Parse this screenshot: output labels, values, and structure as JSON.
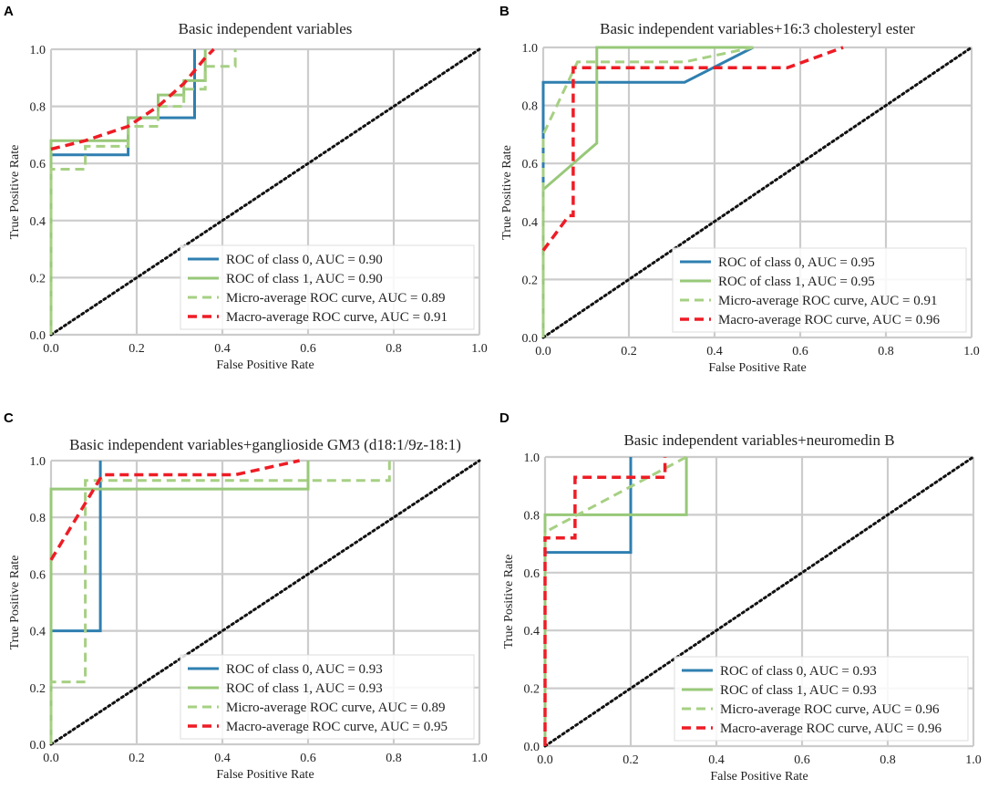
{
  "figure": {
    "xlabel": "False Positive Rate",
    "ylabel": "True Positive Rate",
    "ticks": [
      "0.0",
      "0.2",
      "0.4",
      "0.6",
      "0.8",
      "1.0"
    ],
    "colors": {
      "class0": "#2f7fb0",
      "class1": "#98c879",
      "micro": "#a6d083",
      "macro": "#ee1c25",
      "diagonal": "#111111",
      "grid": "#cccccc"
    }
  },
  "chart_data": [
    {
      "panel": "A",
      "type": "line",
      "title": "Basic independent variables",
      "xlabel": "False Positive Rate",
      "ylabel": "True Positive Rate",
      "xlim": [
        0,
        1
      ],
      "ylim": [
        0,
        1
      ],
      "grid": true,
      "legend_position": "lower-right",
      "series": [
        {
          "key": "class0",
          "name": "ROC of class 0, AUC = 0.90",
          "dash": "solid",
          "x": [
            0,
            0,
            0.18,
            0.18,
            0.27,
            0.27,
            0.335,
            0.335
          ],
          "y": [
            0,
            0.63,
            0.63,
            0.76,
            0.76,
            0.76,
            0.76,
            1.0
          ]
        },
        {
          "key": "class1",
          "name": "ROC of class 1, AUC = 0.90",
          "dash": "solid",
          "x": [
            0,
            0,
            0.18,
            0.18,
            0.25,
            0.25,
            0.31,
            0.31,
            0.36,
            0.36
          ],
          "y": [
            0,
            0.68,
            0.68,
            0.76,
            0.76,
            0.84,
            0.84,
            0.89,
            0.89,
            1.0
          ]
        },
        {
          "key": "micro",
          "name": "Micro-average ROC curve, AUC = 0.89",
          "dash": "dash",
          "x": [
            0,
            0,
            0.08,
            0.08,
            0.18,
            0.18,
            0.25,
            0.25,
            0.31,
            0.31,
            0.36,
            0.36,
            0.43,
            0.43
          ],
          "y": [
            0,
            0.58,
            0.58,
            0.66,
            0.66,
            0.73,
            0.73,
            0.8,
            0.8,
            0.86,
            0.86,
            0.94,
            0.94,
            1.0
          ]
        },
        {
          "key": "macro",
          "name": "Macro-average ROC curve, AUC = 0.91",
          "dash": "dash",
          "x": [
            0,
            0.08,
            0.18,
            0.25,
            0.31,
            0.36,
            0.38
          ],
          "y": [
            0.65,
            0.68,
            0.73,
            0.8,
            0.88,
            0.97,
            1.0
          ]
        },
        {
          "key": "diagonal",
          "name": "",
          "dash": "dot",
          "x": [
            0,
            1
          ],
          "y": [
            0,
            1
          ]
        }
      ]
    },
    {
      "panel": "B",
      "type": "line",
      "title": "Basic independent variables+16:3 cholesteryl ester",
      "xlabel": "False Positive Rate",
      "ylabel": "True Positive Rate",
      "xlim": [
        0,
        1
      ],
      "ylim": [
        0,
        1
      ],
      "grid": true,
      "legend_position": "lower-right",
      "series": [
        {
          "key": "class0",
          "name": "ROC of class 0, AUC = 0.95",
          "dash": "solid",
          "x": [
            0,
            0,
            0.33,
            0.49
          ],
          "y": [
            0,
            0.88,
            0.88,
            1.0
          ]
        },
        {
          "key": "class1",
          "name": "ROC of class 1, AUC = 0.95",
          "dash": "solid",
          "x": [
            0,
            0,
            0.125,
            0.125,
            0.49
          ],
          "y": [
            0,
            0.51,
            0.67,
            1.0,
            1.0
          ]
        },
        {
          "key": "micro",
          "name": "Micro-average ROC curve, AUC = 0.91",
          "dash": "dash",
          "x": [
            0,
            0,
            0.08,
            0.33,
            0.49
          ],
          "y": [
            0,
            0.7,
            0.95,
            0.95,
            1.0
          ]
        },
        {
          "key": "macro",
          "name": "Macro-average ROC curve, AUC = 0.96",
          "dash": "dash",
          "x": [
            0,
            0.06,
            0.07,
            0.07,
            0.57,
            0.7
          ],
          "y": [
            0.3,
            0.42,
            0.42,
            0.93,
            0.93,
            1.0
          ]
        },
        {
          "key": "diagonal",
          "name": "",
          "dash": "dot",
          "x": [
            0,
            1
          ],
          "y": [
            0,
            1
          ]
        }
      ]
    },
    {
      "panel": "C",
      "type": "line",
      "title": "Basic independent variables+ganglioside GM3 (d18:1/9z-18:1)",
      "xlabel": "False Positive Rate",
      "ylabel": "True Positive Rate",
      "xlim": [
        0,
        1
      ],
      "ylim": [
        0,
        1
      ],
      "grid": true,
      "legend_position": "lower-right",
      "series": [
        {
          "key": "class0",
          "name": "ROC of class 0, AUC = 0.93",
          "dash": "solid",
          "x": [
            0,
            0,
            0.115,
            0.115
          ],
          "y": [
            0,
            0.4,
            0.4,
            1.0
          ]
        },
        {
          "key": "class1",
          "name": "ROC of class 1, AUC = 0.93",
          "dash": "solid",
          "x": [
            0,
            0,
            0.6,
            0.6
          ],
          "y": [
            0,
            0.9,
            0.9,
            1.0
          ]
        },
        {
          "key": "micro",
          "name": "Micro-average ROC curve, AUC = 0.89",
          "dash": "dash",
          "x": [
            0,
            0,
            0.08,
            0.08,
            0.79,
            0.79
          ],
          "y": [
            0,
            0.22,
            0.22,
            0.93,
            0.93,
            1.0
          ]
        },
        {
          "key": "macro",
          "name": "Macro-average ROC curve, AUC = 0.95",
          "dash": "dash",
          "x": [
            0,
            0.08,
            0.12,
            0.43,
            0.58
          ],
          "y": [
            0.65,
            0.85,
            0.95,
            0.95,
            1.0
          ]
        },
        {
          "key": "diagonal",
          "name": "",
          "dash": "dot",
          "x": [
            0,
            1
          ],
          "y": [
            0,
            1
          ]
        }
      ]
    },
    {
      "panel": "D",
      "type": "line",
      "title": "Basic independent variables+neuromedin B",
      "xlabel": "False Positive Rate",
      "ylabel": "True Positive Rate",
      "xlim": [
        0,
        1
      ],
      "ylim": [
        0,
        1
      ],
      "grid": true,
      "legend_position": "lower-right",
      "series": [
        {
          "key": "class0",
          "name": "ROC of class 0, AUC = 0.93",
          "dash": "solid",
          "x": [
            0,
            0,
            0.2,
            0.2
          ],
          "y": [
            0,
            0.67,
            0.67,
            1.0
          ]
        },
        {
          "key": "class1",
          "name": "ROC of class 1, AUC = 0.93",
          "dash": "solid",
          "x": [
            0,
            0,
            0.33,
            0.33
          ],
          "y": [
            0,
            0.8,
            0.8,
            1.0
          ]
        },
        {
          "key": "micro",
          "name": "Micro-average ROC curve, AUC = 0.96",
          "dash": "dash",
          "x": [
            0,
            0,
            0.33
          ],
          "y": [
            0,
            0.74,
            1.0
          ]
        },
        {
          "key": "macro",
          "name": "Macro-average ROC curve, AUC = 0.96",
          "dash": "dash",
          "x": [
            0,
            0,
            0.07,
            0.07,
            0.28,
            0.28
          ],
          "y": [
            0,
            0.72,
            0.72,
            0.93,
            0.93,
            1.0
          ]
        },
        {
          "key": "diagonal",
          "name": "",
          "dash": "dot",
          "x": [
            0,
            1
          ],
          "y": [
            0,
            1
          ]
        }
      ]
    }
  ]
}
